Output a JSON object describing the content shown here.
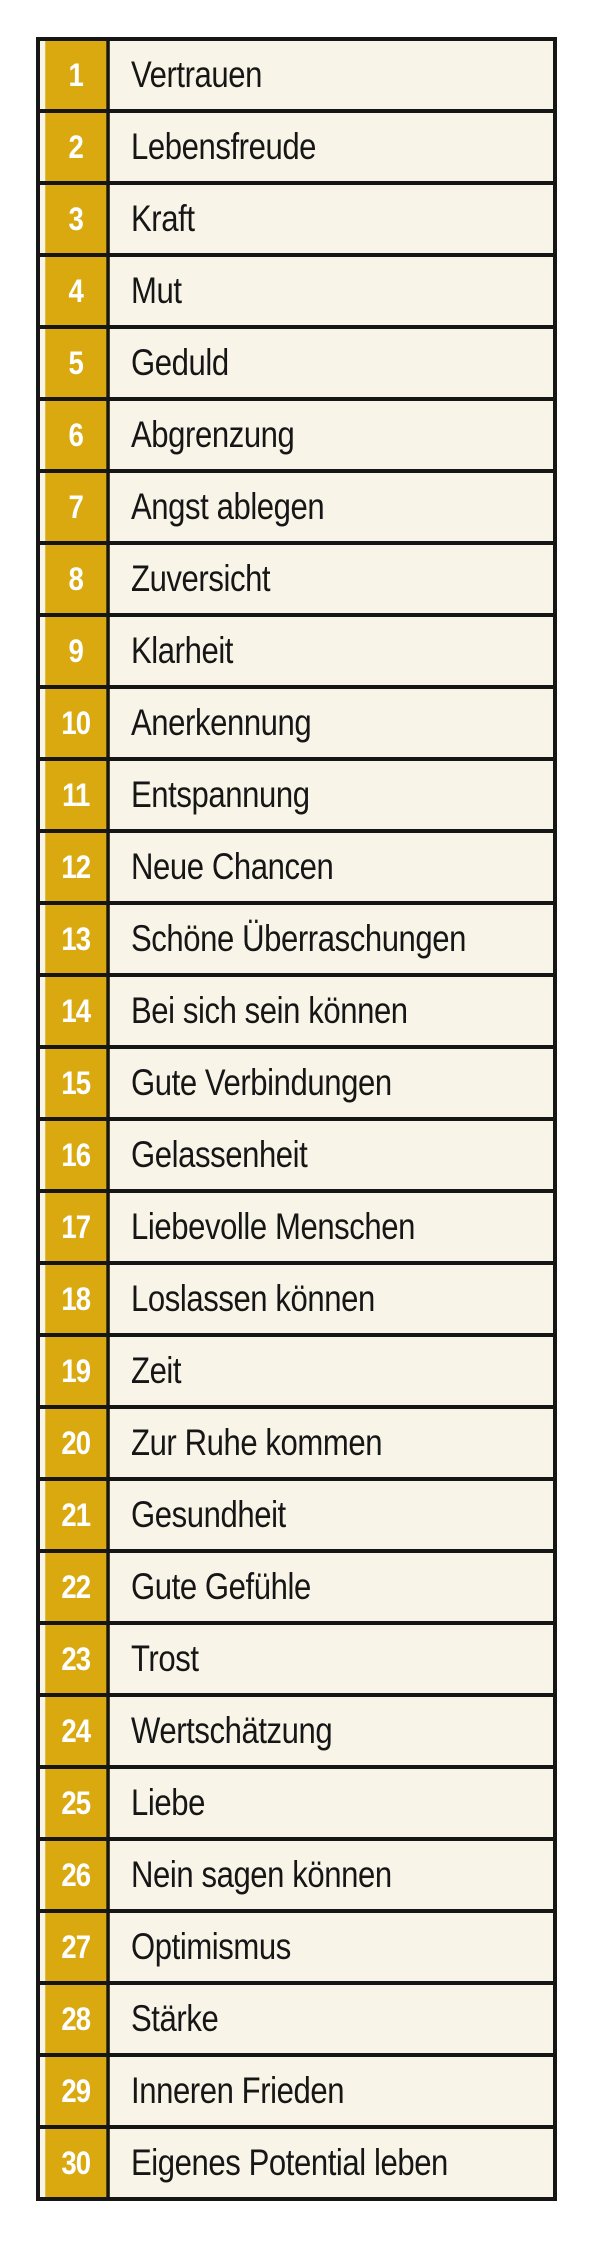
{
  "colors": {
    "number_bg": "#d9a90f",
    "number_text": "#ffffff",
    "label_bg": "#f8f4e8",
    "border": "#161616",
    "label_text": "#161616"
  },
  "rows": [
    {
      "number": "1",
      "label": "Vertrauen"
    },
    {
      "number": "2",
      "label": "Lebensfreude"
    },
    {
      "number": "3",
      "label": "Kraft"
    },
    {
      "number": "4",
      "label": "Mut"
    },
    {
      "number": "5",
      "label": "Geduld"
    },
    {
      "number": "6",
      "label": "Abgrenzung"
    },
    {
      "number": "7",
      "label": "Angst ablegen"
    },
    {
      "number": "8",
      "label": "Zuversicht"
    },
    {
      "number": "9",
      "label": "Klarheit"
    },
    {
      "number": "10",
      "label": "Anerkennung"
    },
    {
      "number": "11",
      "label": "Entspannung"
    },
    {
      "number": "12",
      "label": "Neue Chancen"
    },
    {
      "number": "13",
      "label": "Schöne Überraschungen"
    },
    {
      "number": "14",
      "label": "Bei sich sein können"
    },
    {
      "number": "15",
      "label": "Gute Verbindungen"
    },
    {
      "number": "16",
      "label": "Gelassenheit"
    },
    {
      "number": "17",
      "label": "Liebevolle Menschen"
    },
    {
      "number": "18",
      "label": "Loslassen können"
    },
    {
      "number": "19",
      "label": "Zeit"
    },
    {
      "number": "20",
      "label": "Zur Ruhe kommen"
    },
    {
      "number": "21",
      "label": "Gesundheit"
    },
    {
      "number": "22",
      "label": "Gute Gefühle"
    },
    {
      "number": "23",
      "label": "Trost"
    },
    {
      "number": "24",
      "label": "Wertschätzung"
    },
    {
      "number": "25",
      "label": "Liebe"
    },
    {
      "number": "26",
      "label": "Nein sagen können"
    },
    {
      "number": "27",
      "label": "Optimismus"
    },
    {
      "number": "28",
      "label": "Stärke"
    },
    {
      "number": "29",
      "label": "Inneren Frieden"
    },
    {
      "number": "30",
      "label": "Eigenes Potential leben"
    }
  ]
}
